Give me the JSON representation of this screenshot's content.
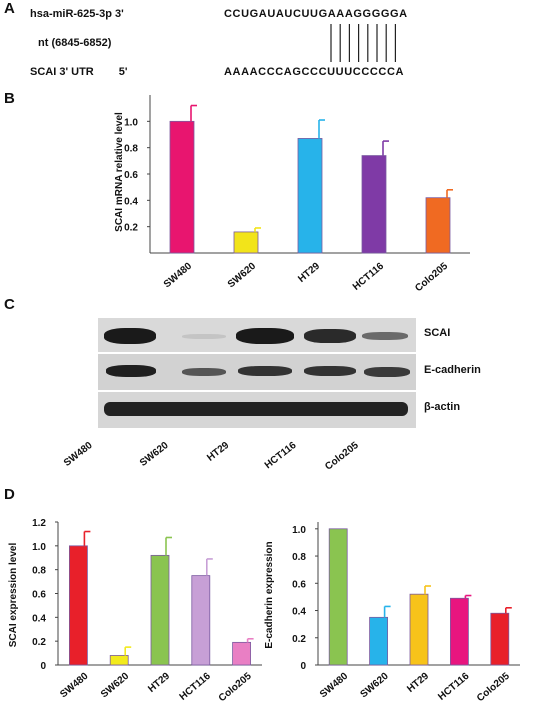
{
  "panel_a": {
    "label": "A",
    "mirna_name": "hsa-miR-625-3p",
    "mirna_end": "3'",
    "mirna_seq": "CCUGAUAUCUUGAAAGGGGGA",
    "nt_range": "nt (6845-6852)",
    "utr_name": "SCAI 3' UTR",
    "utr_end": "5'",
    "utr_seq": "AAAACCCAGCCCUUUCCCCCA",
    "pair_count": 8
  },
  "panel_b": {
    "label": "B"
  },
  "panel_c": {
    "label": "C",
    "bands": [
      "SCAI",
      "E-cadherin",
      "β-actin"
    ],
    "lanes": [
      "SW480",
      "SW620",
      "HT29",
      "HCT116",
      "Colo205"
    ]
  },
  "panel_d": {
    "label": "D"
  },
  "chart_data": [
    {
      "type": "bar",
      "panel": "B",
      "ylabel": "SCAI mRNA relative level",
      "categories": [
        "SW480",
        "SW620",
        "HT29",
        "HCT116",
        "Colo205"
      ],
      "values": [
        1.0,
        0.16,
        0.87,
        0.74,
        0.42
      ],
      "errors": [
        0.12,
        0.03,
        0.14,
        0.11,
        0.06
      ],
      "colors": [
        "#e8156f",
        "#f2e41a",
        "#27b3ea",
        "#7f3aa6",
        "#f06a22"
      ],
      "ylim": [
        0,
        1.2
      ],
      "yticks": [
        "0.2",
        "0.4",
        "0.6",
        "0.8",
        "1.0"
      ]
    },
    {
      "type": "bar",
      "panel": "D-left",
      "ylabel": "SCAI expression level",
      "categories": [
        "SW480",
        "SW620",
        "HT29",
        "HCT116",
        "Colo205"
      ],
      "values": [
        1.0,
        0.08,
        0.92,
        0.75,
        0.19
      ],
      "errors": [
        0.12,
        0.07,
        0.15,
        0.14,
        0.03
      ],
      "colors": [
        "#e8202a",
        "#f2ea1c",
        "#8ac450",
        "#c79fd6",
        "#e97fc4"
      ],
      "ylim": [
        0,
        1.2
      ],
      "yticks": [
        "0",
        "0.2",
        "0.4",
        "0.6",
        "0.8",
        "1.0",
        "1.2"
      ]
    },
    {
      "type": "bar",
      "panel": "D-right",
      "ylabel": "E-cadherin expression",
      "categories": [
        "SW480",
        "SW620",
        "HT29",
        "HCT116",
        "Colo205"
      ],
      "values": [
        1.0,
        0.35,
        0.52,
        0.49,
        0.38
      ],
      "errors": [
        0.0,
        0.08,
        0.06,
        0.02,
        0.04
      ],
      "colors": [
        "#8ac450",
        "#27b3ea",
        "#f7c31a",
        "#e8157f",
        "#e8202a"
      ],
      "ylim": [
        0,
        1.05
      ],
      "yticks": [
        "0",
        "0.2",
        "0.4",
        "0.6",
        "0.8",
        "1.0"
      ]
    }
  ]
}
